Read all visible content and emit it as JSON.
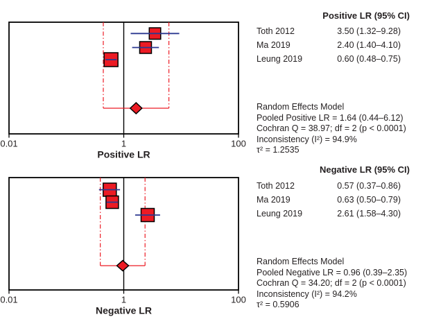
{
  "colors": {
    "red": "#EC1B24",
    "navy": "#2B3890",
    "black": "#000000",
    "text": "#231F20",
    "background": "#FFFFFF"
  },
  "chart_data": [
    {
      "type": "forest",
      "title": "",
      "xlabel": "Positive LR",
      "xscale": "log",
      "xlim": [
        0.01,
        100
      ],
      "xticks": [
        "0.01",
        "1",
        "100"
      ],
      "null_line": 1,
      "column_header": "Positive LR (95% CI)",
      "studies": [
        {
          "name": "Toth 2012",
          "est": 3.5,
          "lo": 1.32,
          "hi": 9.28,
          "label": "3.50 (1.32–9.28)"
        },
        {
          "name": "Ma 2019",
          "est": 2.4,
          "lo": 1.4,
          "hi": 4.1,
          "label": "2.40 (1.40–4.10)"
        },
        {
          "name": "Leung 2019",
          "est": 0.6,
          "lo": 0.48,
          "hi": 0.75,
          "label": "0.60 (0.48–0.75)"
        }
      ],
      "pooled": {
        "model": "Random Effects Model",
        "est": 1.64,
        "lo": 0.44,
        "hi": 6.12
      },
      "stats_lines": [
        "Random Effects Model",
        "Pooled Positive LR = 1.64 (0.44–6.12)",
        "Cochran Q = 38.97; df = 2 (p < 0.0001)",
        "Inconsistency (I²) = 94.9%",
        "τ² = 1.2535"
      ]
    },
    {
      "type": "forest",
      "title": "",
      "xlabel": "Negative LR",
      "xscale": "log",
      "xlim": [
        0.01,
        100
      ],
      "xticks": [
        "0.01",
        "1",
        "100"
      ],
      "null_line": 1,
      "column_header": "Negative LR (95% CI)",
      "studies": [
        {
          "name": "Toth 2012",
          "est": 0.57,
          "lo": 0.37,
          "hi": 0.86,
          "label": "0.57 (0.37–0.86)"
        },
        {
          "name": "Ma 2019",
          "est": 0.63,
          "lo": 0.5,
          "hi": 0.79,
          "label": "0.63 (0.50–0.79)"
        },
        {
          "name": "Leung 2019",
          "est": 2.61,
          "lo": 1.58,
          "hi": 4.3,
          "label": "2.61 (1.58–4.30)"
        }
      ],
      "pooled": {
        "model": "Random Effects Model",
        "est": 0.96,
        "lo": 0.39,
        "hi": 2.35
      },
      "stats_lines": [
        "Random Effects Model",
        "Pooled Negative LR = 0.96 (0.39–2.35)",
        "Cochran Q = 34.20; df = 2 (p < 0.0001)",
        "Inconsistency (I²) = 94.2%",
        "τ² = 0.5906"
      ]
    }
  ]
}
